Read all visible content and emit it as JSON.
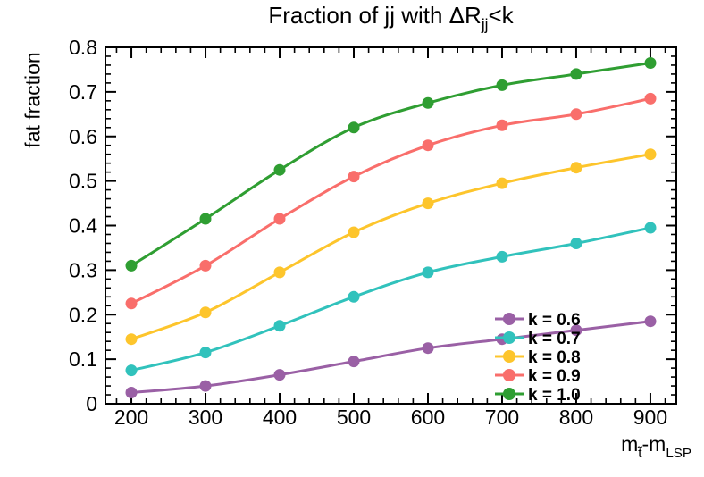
{
  "title": {
    "prefix": "Fraction of jj with ΔR",
    "sub": "jj",
    "suffix": "<k"
  },
  "xlabel_parts": {
    "base1": "m",
    "sub1": "t̃",
    "base2": "-m",
    "sub2": "LSP"
  },
  "chart_data": {
    "type": "line",
    "title": "Fraction of jj with ΔR_jj<k",
    "xlabel": "m_t̃-m_LSP",
    "ylabel": "fat fraction",
    "x": [
      200,
      300,
      400,
      500,
      600,
      700,
      800,
      900
    ],
    "xlim": [
      165,
      935
    ],
    "ylim": [
      0,
      0.8
    ],
    "x_ticks": [
      200,
      300,
      400,
      500,
      600,
      700,
      800,
      900
    ],
    "x_minor_step": 20,
    "y_ticks": [
      0,
      0.1,
      0.2,
      0.3,
      0.4,
      0.5,
      0.6,
      0.7,
      0.8
    ],
    "y_tick_labels": [
      "0",
      "0.1",
      "0.2",
      "0.3",
      "0.4",
      "0.5",
      "0.6",
      "0.7",
      "0.8"
    ],
    "y_minor_step": 0.02,
    "grid": false,
    "legend_position": "bottom-right",
    "marker": "circle",
    "series": [
      {
        "name": "k = 0.6",
        "color": "#9a60a5",
        "values": [
          0.025,
          0.04,
          0.065,
          0.095,
          0.125,
          0.145,
          0.165,
          0.185
        ]
      },
      {
        "name": "k = 0.7",
        "color": "#31c2bc",
        "values": [
          0.075,
          0.115,
          0.175,
          0.24,
          0.295,
          0.33,
          0.36,
          0.395
        ]
      },
      {
        "name": "k = 0.8",
        "color": "#fdc52c",
        "values": [
          0.145,
          0.205,
          0.295,
          0.385,
          0.45,
          0.495,
          0.53,
          0.56
        ]
      },
      {
        "name": "k = 0.9",
        "color": "#f96e6b",
        "values": [
          0.225,
          0.31,
          0.415,
          0.51,
          0.58,
          0.625,
          0.65,
          0.685
        ]
      },
      {
        "name": "k = 1.0",
        "color": "#2f9e32",
        "values": [
          0.31,
          0.415,
          0.525,
          0.62,
          0.675,
          0.715,
          0.74,
          0.765
        ]
      }
    ]
  },
  "colors": {
    "frame": "#000000",
    "background": "#ffffff"
  }
}
